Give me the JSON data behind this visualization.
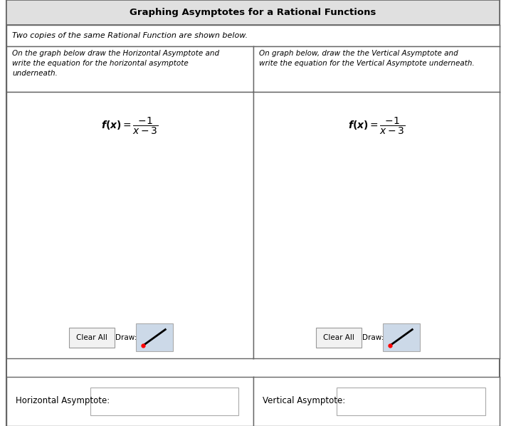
{
  "title": "Graphing Asymptotes for a Rational Functions",
  "subtitle": "Two copies of the same Rational Function are shown below.",
  "left_instruction": "On the graph below draw the Horizontal Asymptote and\nwrite the equation for the horizontal asymptote\nunderneath.",
  "right_instruction": "On graph below, draw the the Vertical Asymptote and\nwrite the equation for the Vertical Asymptote underneath.",
  "left_label": "Horizontal Asymptote:",
  "right_label": "Vertical Asymptote:",
  "x_min": -5,
  "x_max": 5,
  "y_min": -5,
  "y_max": 5,
  "bg_color": "#ffffff",
  "grid_color": "#c8c8c8",
  "axis_color": "#444444",
  "curve_color": "#111111",
  "border_color": "#666666",
  "title_bg": "#e0e0e0",
  "draw_icon_bg": "#ccd9e8",
  "input_box_border": "#aaaaaa",
  "title_fontsize": 9.5,
  "subtitle_fontsize": 8.0,
  "instr_fontsize": 7.5,
  "formula_fontsize": 10,
  "tick_fontsize": 7,
  "label_fontsize": 8.5,
  "button_fontsize": 7.5
}
